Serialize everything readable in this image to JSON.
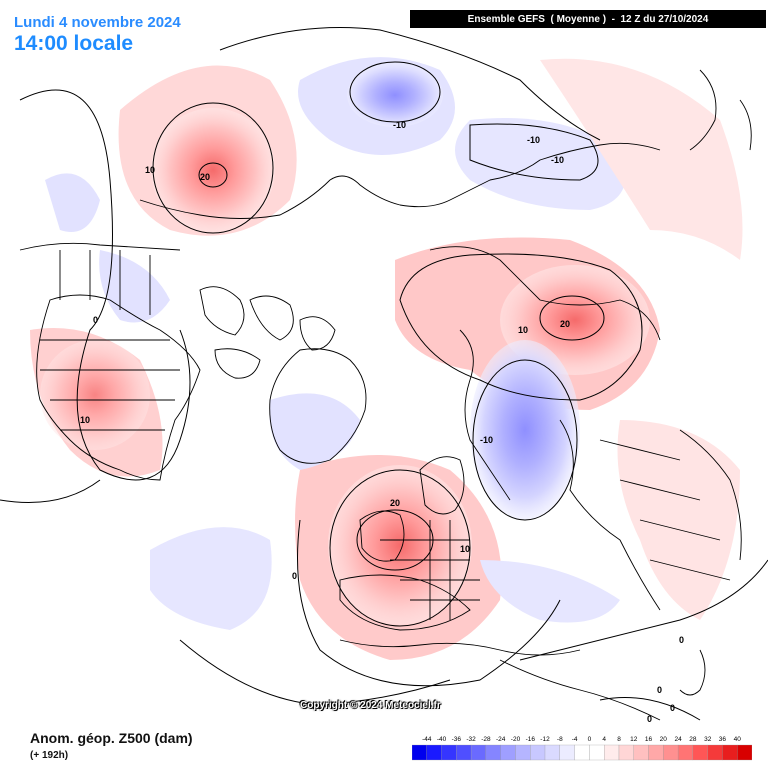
{
  "header": {
    "date": "Lundi 4 novembre 2024",
    "time": "14:00 locale",
    "run": "Ensemble GEFS  ( Moyenne )  -  12 Z du 27/10/2024"
  },
  "footer": {
    "variable": "Anom. géop. Z500 (dam)",
    "lead": "(+ 192h)",
    "copyright": "Copyright © 2024 Meteociel.fr"
  },
  "legend": {
    "ticks": [
      "-44",
      "-40",
      "-36",
      "-32",
      "-28",
      "-24",
      "-20",
      "-16",
      "-12",
      "-8",
      "-4",
      "0",
      "4",
      "8",
      "12",
      "16",
      "20",
      "24",
      "28",
      "32",
      "36",
      "40"
    ],
    "colors": [
      "#0000ee",
      "#1a1aff",
      "#3535ff",
      "#4f4fff",
      "#6a6aff",
      "#8585ff",
      "#9f9fff",
      "#b5b5ff",
      "#c8c8ff",
      "#dadaff",
      "#ececff",
      "#ffffff",
      "#ffffff",
      "#ffecec",
      "#ffd6d6",
      "#ffc0c0",
      "#ffa8a8",
      "#ff9090",
      "#ff7474",
      "#ff5656",
      "#f53a3a",
      "#e81e1e",
      "#d80000"
    ]
  },
  "anomalies": [
    {
      "name": "pacific-high",
      "kind": "positive",
      "max": 20
    },
    {
      "name": "arctic-low",
      "kind": "negative",
      "min": -10
    },
    {
      "name": "siberia-low",
      "kind": "negative",
      "min": -10
    },
    {
      "name": "central-asia-high",
      "kind": "positive",
      "max": 20
    },
    {
      "name": "west-siberia-low",
      "kind": "negative",
      "min": -10
    },
    {
      "name": "europe-high",
      "kind": "positive",
      "max": 20
    },
    {
      "name": "north-america-high",
      "kind": "positive",
      "max": 10
    }
  ],
  "contour_labels": [
    "20",
    "10",
    "-10",
    "-10",
    "-10",
    "10",
    "20",
    "-10",
    "20",
    "10",
    "0",
    "0",
    "10",
    "0",
    "0",
    "0",
    "0"
  ]
}
